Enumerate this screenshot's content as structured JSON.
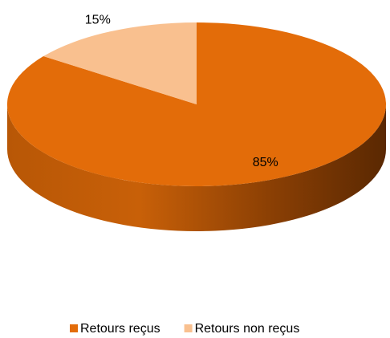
{
  "chart_data": {
    "type": "pie",
    "categories": [
      "Retours reçus",
      "Retours non reçus"
    ],
    "values": [
      85,
      15
    ],
    "value_labels": [
      "85%",
      "15%"
    ],
    "colors": [
      "#E36C09",
      "#F9C08F"
    ],
    "legend": "bottom"
  }
}
